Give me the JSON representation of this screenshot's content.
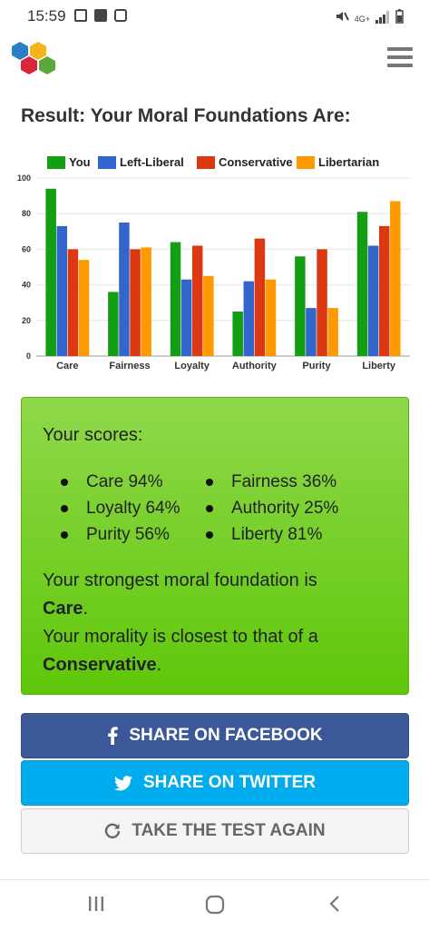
{
  "status_bar": {
    "time": "15:59",
    "network": "4G+"
  },
  "page": {
    "title": "Result: Your Moral Foundations Are:"
  },
  "colors": {
    "you": "#139e14",
    "left_liberal": "#3366cc",
    "conservative": "#dc3912",
    "libertarian": "#ff9900",
    "facebook": "#3b5998",
    "twitter": "#00aced"
  },
  "chart_data": {
    "type": "bar",
    "categories": [
      "Care",
      "Fairness",
      "Loyalty",
      "Authority",
      "Purity",
      "Liberty"
    ],
    "series": [
      {
        "name": "You",
        "values": [
          94,
          36,
          64,
          25,
          56,
          81
        ]
      },
      {
        "name": "Left-Liberal",
        "values": [
          73,
          75,
          43,
          42,
          27,
          62
        ]
      },
      {
        "name": "Conservative",
        "values": [
          60,
          60,
          62,
          66,
          60,
          73
        ]
      },
      {
        "name": "Libertarian",
        "values": [
          54,
          61,
          45,
          43,
          27,
          87
        ]
      }
    ],
    "ylim": [
      0,
      100
    ],
    "yticks": [
      "0",
      "20",
      "40",
      "60",
      "80",
      "100"
    ],
    "legend": "top",
    "grid": true
  },
  "scores": {
    "heading": "Your scores:",
    "items": [
      "Care 94%",
      "Fairness 36%",
      "Loyalty 64%",
      "Authority 25%",
      "Purity 56%",
      "Liberty 81%"
    ],
    "strongest_prefix": "Your strongest moral foundation is",
    "strongest_value": "Care",
    "closest_prefix": "Your morality is closest to that of a",
    "closest_value": "Conservative",
    "period": "."
  },
  "buttons": {
    "facebook": "SHARE ON FACEBOOK",
    "twitter": "SHARE ON TWITTER",
    "again": "TAKE THE TEST AGAIN"
  },
  "icons": {
    "logo": "hexagon-logo-icon",
    "menu": "hamburger-menu-icon",
    "facebook": "facebook-icon",
    "twitter": "twitter-bird-icon",
    "again": "refresh-icon"
  }
}
